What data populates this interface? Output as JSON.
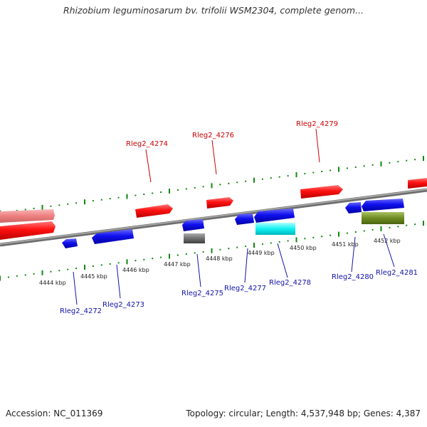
{
  "title": "Rhizobium leguminosarum bv. trifolii WSM2304, complete genom...",
  "accession": "Accession: NC_011369",
  "summary": "Topology: circular; Length: 4,537,948 bp; Genes: 4,387",
  "colors": {
    "forward_gene": "#ee1111",
    "reverse_gene": "#1111dd",
    "forward_label": "#cc0000",
    "reverse_label": "#1111aa",
    "ticks": "#118811",
    "backbone": "#888888"
  },
  "scale": {
    "ticks": [
      {
        "label": "4444 kbp",
        "kbp": 4444
      },
      {
        "label": "4445 kbp",
        "kbp": 4445
      },
      {
        "label": "4446 kbp",
        "kbp": 4446
      },
      {
        "label": "4447 kbp",
        "kbp": 4447
      },
      {
        "label": "4448 kbp",
        "kbp": 4448
      },
      {
        "label": "4449 kbp",
        "kbp": 4449
      },
      {
        "label": "4450 kbp",
        "kbp": 4450
      },
      {
        "label": "4451 kbp",
        "kbp": 4451
      },
      {
        "label": "4452 kbp",
        "kbp": 4452
      }
    ]
  },
  "labels": {
    "forward": [
      "Rleg2_4274",
      "Rleg2_4276",
      "Rleg2_4279"
    ],
    "reverse": [
      "Rleg2_4272",
      "Rleg2_4273",
      "Rleg2_4275",
      "Rleg2_4277",
      "Rleg2_4278",
      "Rleg2_4280",
      "Rleg2_4281"
    ]
  }
}
